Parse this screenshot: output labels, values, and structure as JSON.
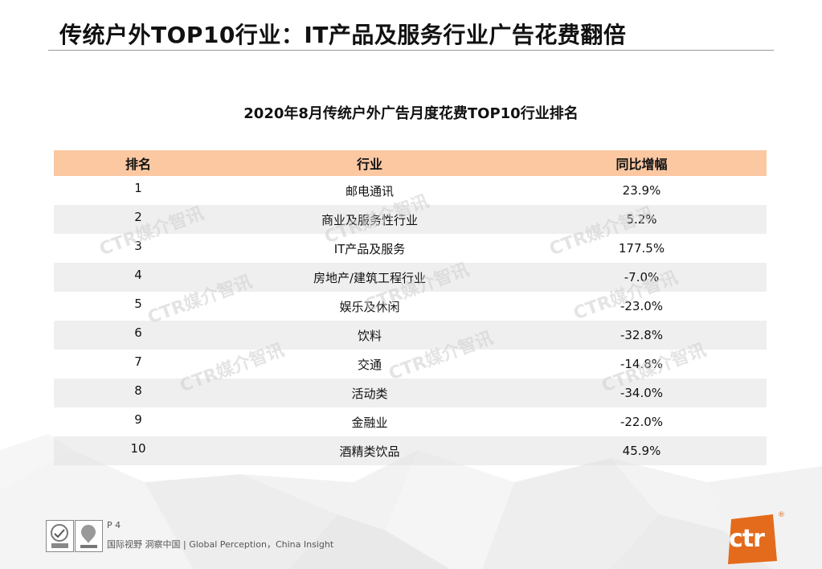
{
  "page_title": "传统户外TOP10行业：IT产品及服务行业广告花费翻倍",
  "chart_data": {
    "type": "table",
    "title": "2020年8月传统户外广告月度花费TOP10行业排名",
    "columns": [
      "排名",
      "行业",
      "同比增幅"
    ],
    "rows": [
      [
        "1",
        "邮电通讯",
        "23.9%"
      ],
      [
        "2",
        "商业及服务性行业",
        "5.2%"
      ],
      [
        "3",
        "IT产品及服务",
        "177.5%"
      ],
      [
        "4",
        "房地产/建筑工程行业",
        "-7.0%"
      ],
      [
        "5",
        "娱乐及休闲",
        "-23.0%"
      ],
      [
        "6",
        "饮料",
        "-32.8%"
      ],
      [
        "7",
        "交通",
        "-14.8%"
      ],
      [
        "8",
        "活动类",
        "-34.0%"
      ],
      [
        "9",
        "金融业",
        "-22.0%"
      ],
      [
        "10",
        "酒精类饮品",
        "45.9%"
      ]
    ]
  },
  "watermark": "CTR媒介智讯",
  "footer": {
    "page": "P 4",
    "tagline": "国际视野  洞察中国 |  Global Perception，China Insight",
    "logo_text": "ctr",
    "registered": "®"
  },
  "colors": {
    "header_fill": "#fbc8a2",
    "brand_orange": "#e36b1b",
    "stripe": "#e1e1e1"
  }
}
